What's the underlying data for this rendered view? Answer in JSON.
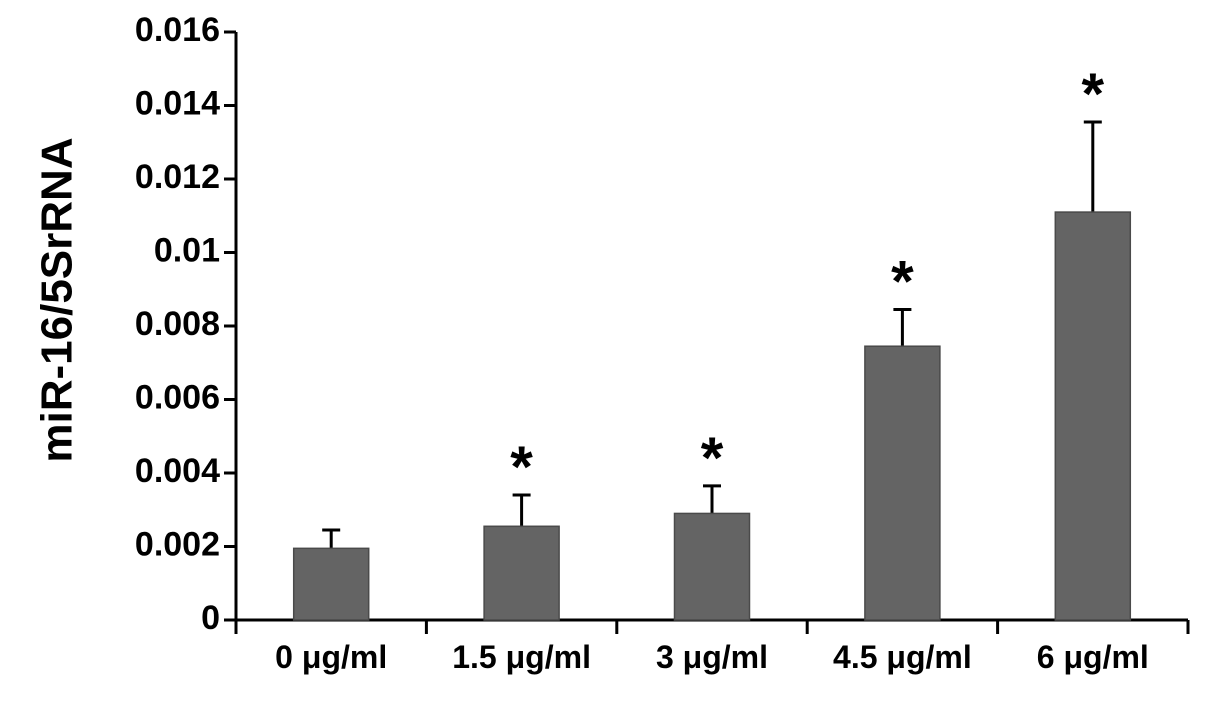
{
  "chart_data": {
    "type": "bar",
    "title": "",
    "xlabel": "",
    "ylabel": "miR-16/5SrRNA",
    "ylim": [
      0,
      0.016
    ],
    "y_ticks": [
      "0",
      "0.002",
      "0.004",
      "0.006",
      "0.008",
      "0.01",
      "0.012",
      "0.014",
      "0.016"
    ],
    "categories": [
      "0 μg/ml",
      "1.5 μg/ml",
      "3 μg/ml",
      "4.5 μg/ml",
      "6 μg/ml"
    ],
    "values": [
      0.00195,
      0.00255,
      0.0029,
      0.00745,
      0.0111
    ],
    "error_upper": [
      0.00245,
      0.0034,
      0.00365,
      0.00845,
      0.01355
    ],
    "significance": [
      "",
      "*",
      "*",
      "*",
      "*"
    ],
    "grid": false,
    "legend": "none",
    "colors": {
      "bar": "#646464",
      "bar_edge": "#4a4a4a",
      "axis": "#000000"
    }
  }
}
